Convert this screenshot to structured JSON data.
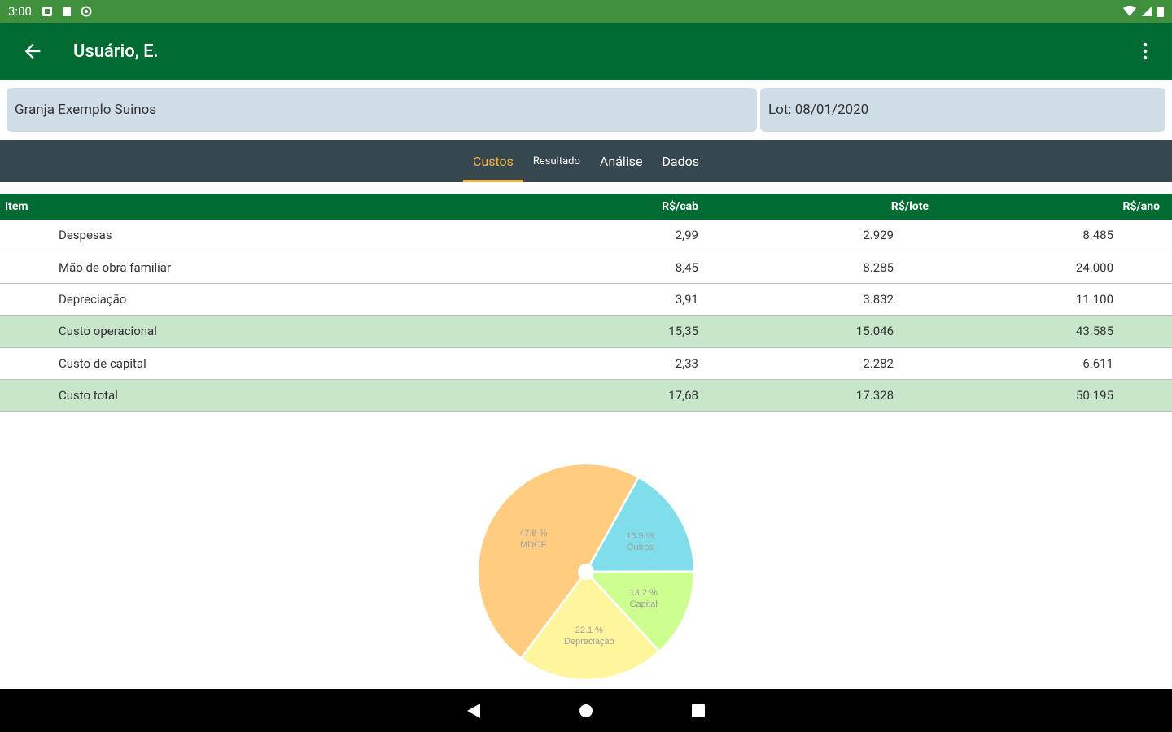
{
  "status_bar": {
    "time": "3:00"
  },
  "app_bar": {
    "title": "Usuário, E."
  },
  "selectors": {
    "farm": "Granja Exemplo Suinos",
    "lot": "Lot: 08/01/2020"
  },
  "tabs": [
    {
      "label": "Custos",
      "active": true
    },
    {
      "label": "Resultado",
      "active": false
    },
    {
      "label": "Análise",
      "active": false
    },
    {
      "label": "Dados",
      "active": false
    }
  ],
  "table": {
    "headers": {
      "item": "Item",
      "cab": "R$/cab",
      "lote": "R$/lote",
      "ano": "R$/ano"
    },
    "rows": [
      {
        "item": "Despesas",
        "cab": "2,99",
        "lote": "2.929",
        "ano": "8.485",
        "highlight": false
      },
      {
        "item": "Mão de obra familiar",
        "cab": "8,45",
        "lote": "8.285",
        "ano": "24.000",
        "highlight": false
      },
      {
        "item": "Depreciação",
        "cab": "3,91",
        "lote": "3.832",
        "ano": "11.100",
        "highlight": false
      },
      {
        "item": "Custo operacional",
        "cab": "15,35",
        "lote": "15.046",
        "ano": "43.585",
        "highlight": true
      },
      {
        "item": "Custo de capital",
        "cab": "2,33",
        "lote": "2.282",
        "ano": "6.611",
        "highlight": false
      },
      {
        "item": "Custo total",
        "cab": "17,68",
        "lote": "17.328",
        "ano": "50.195",
        "highlight": true
      }
    ]
  },
  "chart_data": {
    "type": "pie",
    "slices": [
      {
        "label": "Outros",
        "pct_label": "16.9 %",
        "value": 16.9,
        "color": "#80deea"
      },
      {
        "label": "Capital",
        "pct_label": "13.2 %",
        "value": 13.2,
        "color": "#ccff90"
      },
      {
        "label": "Depreciação",
        "pct_label": "22.1 %",
        "value": 22.1,
        "color": "#fff59d"
      },
      {
        "label": "MDOF",
        "pct_label": "47.8 %",
        "value": 47.8,
        "color": "#ffcc80"
      }
    ]
  },
  "colors": {
    "status": "#3f8f3c",
    "primary": "#006c33",
    "tabbar": "#37474f",
    "accent": "#f6b53a",
    "highlight_row": "#c8e6c9",
    "selector_bg": "#cfdde6"
  }
}
